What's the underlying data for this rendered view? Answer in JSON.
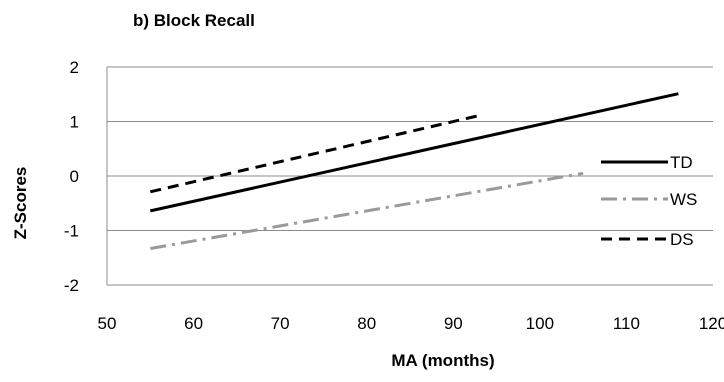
{
  "chart_data": {
    "type": "line",
    "title": "b) Block Recall",
    "xlabel": "MA (months)",
    "ylabel": "Z-Scores",
    "xlim": [
      50,
      120
    ],
    "ylim": [
      -2,
      2
    ],
    "xticks": [
      "50",
      "60",
      "70",
      "80",
      "90",
      "100",
      "110",
      "120"
    ],
    "yticks": [
      "-2",
      "-1",
      "0",
      "1",
      "2"
    ],
    "grid": "horizontal",
    "legend_position": "right",
    "series": [
      {
        "name": "TD",
        "x": [
          55,
          116
        ],
        "y": [
          -0.64,
          1.51
        ],
        "color": "#000000",
        "dash": "solid",
        "width": 3
      },
      {
        "name": "WS",
        "x": [
          55,
          105
        ],
        "y": [
          -1.33,
          0.05
        ],
        "color": "#9a9a9a",
        "dash": "dashdot",
        "width": 3
      },
      {
        "name": "DS",
        "x": [
          55,
          93
        ],
        "y": [
          -0.29,
          1.11
        ],
        "color": "#000000",
        "dash": "dashed",
        "width": 3
      }
    ]
  }
}
